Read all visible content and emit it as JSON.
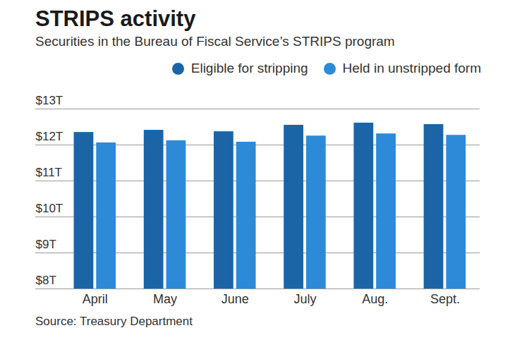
{
  "chart_data": {
    "type": "bar",
    "title": "STRIPS activity",
    "subtitle": "Securities in the Bureau of Fiscal Service’s STRIPS program",
    "caption": "Source: Treasury Department",
    "categories": [
      "April",
      "May",
      "June",
      "July",
      "Aug.",
      "Sept."
    ],
    "series": [
      {
        "name": "Eligible for stripping",
        "color": "#1b65a6",
        "values": [
          12.35,
          12.41,
          12.37,
          12.55,
          12.61,
          12.57
        ]
      },
      {
        "name": "Held in unstripped form",
        "color": "#2d8ad8",
        "values": [
          12.06,
          12.12,
          12.08,
          12.25,
          12.31,
          12.27
        ]
      }
    ],
    "ylim": [
      8,
      13
    ],
    "yticks": [
      {
        "value": 8,
        "label": "$8T"
      },
      {
        "value": 9,
        "label": "$9T"
      },
      {
        "value": 10,
        "label": "$10T"
      },
      {
        "value": 11,
        "label": "$11T"
      },
      {
        "value": 12,
        "label": "$12T"
      },
      {
        "value": 13,
        "label": "$13T"
      }
    ],
    "grid": true,
    "legend": "top"
  }
}
